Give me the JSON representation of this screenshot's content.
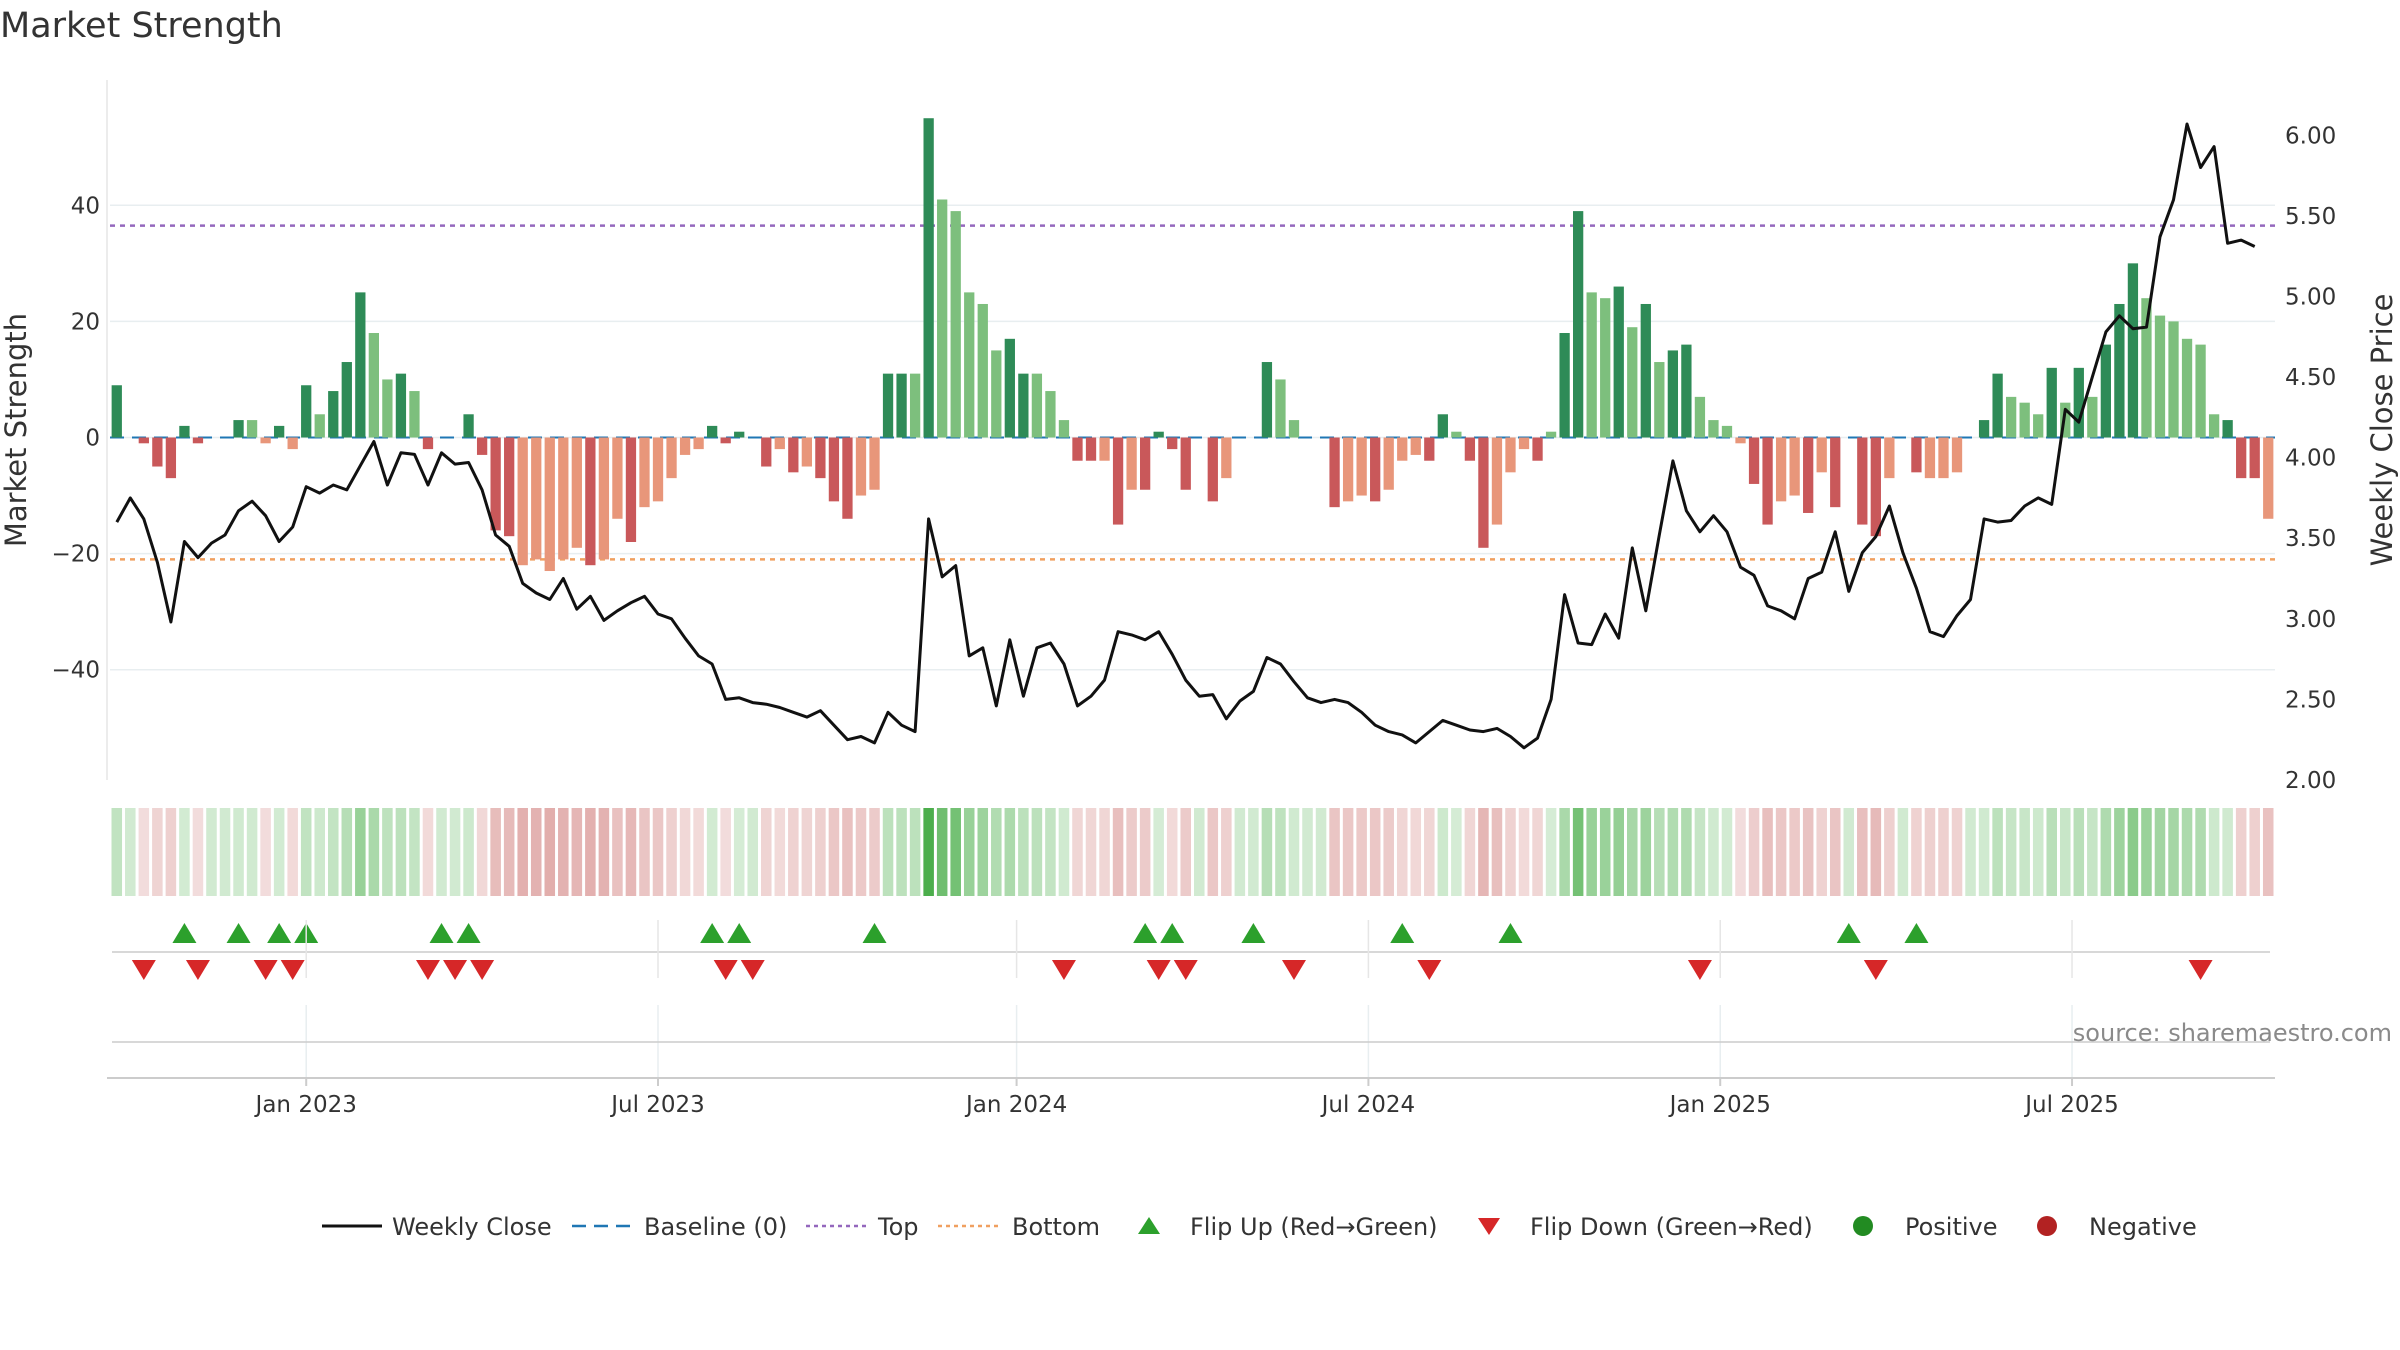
{
  "title": "Market Strength",
  "source": "source: sharemaestro.com",
  "chart_data": {
    "type": "bar+line",
    "title": "Market Strength",
    "left_axis": {
      "label": "Market Strength",
      "ylim": [
        -59,
        59
      ],
      "ticks": [
        -40,
        -20,
        0,
        20,
        40
      ]
    },
    "right_axis": {
      "label": "Weekly Close Price",
      "ylim": [
        2.0,
        6.25
      ],
      "ticks": [
        "2.00",
        "2.50",
        "3.00",
        "3.50",
        "4.00",
        "4.50",
        "5.00",
        "5.50",
        "6.00"
      ]
    },
    "x_ticks": [
      "Jan 2023",
      "Jul 2023",
      "Jan 2024",
      "Jul 2024",
      "Jan 2025",
      "Jul 2025"
    ],
    "x_tick_weeks": [
      14,
      40,
      66.5,
      92.5,
      118.5,
      144.5
    ],
    "top_line": 36.5,
    "bottom_line": -21,
    "colors": {
      "pos_strong": "#2e8b57",
      "pos_light": "#7dbf7d",
      "neg_strong": "#c9585a",
      "neg_light": "#e8967a",
      "line": "#111111",
      "baseline": "#1f77b4",
      "top": "#9467bd",
      "bottom": "#f0a060",
      "flip_up": "#2ca02c",
      "flip_down": "#d62728",
      "dot_pos": "#228b22",
      "dot_neg": "#b22222"
    },
    "strength": [
      9,
      0,
      -1,
      -5,
      -7,
      2,
      -1,
      0,
      0,
      3,
      3,
      -1,
      2,
      -2,
      9,
      4,
      8,
      13,
      25,
      18,
      10,
      11,
      8,
      -2,
      0,
      0,
      4,
      -3,
      -16,
      -17,
      -22,
      -21,
      -23,
      -21,
      -19,
      -22,
      -21,
      -14,
      -18,
      -12,
      -11,
      -7,
      -3,
      -2,
      2,
      -1,
      1,
      0,
      -5,
      -2,
      -6,
      -5,
      -7,
      -11,
      -14,
      -10,
      -9,
      11,
      11,
      11,
      55,
      41,
      39,
      25,
      23,
      15,
      17,
      11,
      11,
      8,
      3,
      -4,
      -4,
      -4,
      -15,
      -9,
      -9,
      1,
      -2,
      -9,
      0,
      -11,
      -7,
      0,
      0,
      13,
      10,
      3,
      0,
      0,
      -12,
      -11,
      -10,
      -11,
      -9,
      -4,
      -3,
      -4,
      4,
      1,
      -4,
      -19,
      -15,
      -6,
      -2,
      -4,
      1,
      18,
      39,
      25,
      24,
      26,
      19,
      23,
      13,
      15,
      16,
      7,
      3,
      2,
      -1,
      -8,
      -15,
      -11,
      -10,
      -13,
      -6,
      -12,
      0,
      -15,
      -17,
      -7,
      0,
      -6,
      -7,
      -7,
      -6,
      0,
      3,
      11,
      7,
      6,
      4,
      12,
      6,
      12,
      7,
      16,
      23,
      30,
      24,
      21,
      20,
      17,
      16,
      4,
      3,
      -7,
      -7,
      -14
    ],
    "strength_shade": [
      1,
      1,
      1,
      1,
      1,
      1,
      1,
      0,
      0,
      1,
      0,
      0,
      1,
      0,
      1,
      0,
      1,
      1,
      1,
      0,
      0,
      1,
      0,
      1,
      0,
      0,
      1,
      1,
      1,
      1,
      0,
      0,
      0,
      0,
      0,
      1,
      0,
      0,
      1,
      0,
      0,
      0,
      0,
      0,
      1,
      1,
      1,
      0,
      1,
      0,
      1,
      0,
      1,
      1,
      1,
      0,
      0,
      1,
      1,
      0,
      1,
      0,
      0,
      0,
      0,
      0,
      1,
      1,
      0,
      0,
      0,
      1,
      1,
      0,
      1,
      0,
      1,
      1,
      1,
      1,
      0,
      1,
      0,
      0,
      0,
      1,
      0,
      0,
      0,
      0,
      1,
      0,
      0,
      1,
      0,
      0,
      0,
      1,
      1,
      0,
      1,
      1,
      0,
      0,
      0,
      1,
      0,
      1,
      1,
      0,
      0,
      1,
      0,
      1,
      0,
      1,
      1,
      0,
      0,
      0,
      0,
      1,
      1,
      0,
      0,
      1,
      0,
      1,
      0,
      1,
      1,
      0,
      1,
      1,
      0,
      0,
      0,
      0,
      1,
      1,
      0,
      0,
      0,
      1,
      0,
      1,
      0,
      1,
      1,
      1,
      0,
      0,
      0,
      0,
      0,
      0,
      1,
      1,
      1
    ],
    "weekly_close": [
      3.6,
      3.75,
      3.62,
      3.35,
      2.98,
      3.48,
      3.38,
      3.47,
      3.52,
      3.67,
      3.73,
      3.64,
      3.48,
      3.57,
      3.82,
      3.78,
      3.83,
      3.8,
      3.95,
      4.1,
      3.83,
      4.03,
      4.02,
      3.83,
      4.03,
      3.96,
      3.97,
      3.8,
      3.52,
      3.45,
      3.22,
      3.16,
      3.12,
      3.25,
      3.06,
      3.14,
      2.99,
      3.05,
      3.1,
      3.14,
      3.03,
      3.0,
      2.88,
      2.77,
      2.72,
      2.5,
      2.51,
      2.48,
      2.47,
      2.45,
      2.42,
      2.39,
      2.43,
      2.34,
      2.25,
      2.27,
      2.23,
      2.42,
      2.34,
      2.3,
      3.62,
      3.26,
      3.33,
      2.77,
      2.82,
      2.46,
      2.87,
      2.52,
      2.82,
      2.85,
      2.72,
      2.46,
      2.52,
      2.62,
      2.92,
      2.9,
      2.87,
      2.92,
      2.78,
      2.62,
      2.52,
      2.53,
      2.38,
      2.49,
      2.55,
      2.76,
      2.72,
      2.61,
      2.51,
      2.48,
      2.5,
      2.48,
      2.42,
      2.34,
      2.3,
      2.28,
      2.23,
      2.3,
      2.37,
      2.34,
      2.31,
      2.3,
      2.32,
      2.27,
      2.2,
      2.26,
      2.5,
      3.15,
      2.85,
      2.84,
      3.03,
      2.88,
      3.44,
      3.05,
      3.52,
      3.98,
      3.67,
      3.54,
      3.64,
      3.54,
      3.32,
      3.27,
      3.08,
      3.05,
      3.0,
      3.25,
      3.29,
      3.54,
      3.17,
      3.41,
      3.51,
      3.7,
      3.41,
      3.19,
      2.92,
      2.89,
      3.02,
      3.12,
      3.62,
      3.6,
      3.61,
      3.7,
      3.75,
      3.71,
      4.3,
      4.22,
      4.5,
      4.78,
      4.88,
      4.8,
      4.81,
      5.37,
      5.6,
      6.07,
      5.8,
      5.93,
      5.33,
      5.35,
      5.31
    ],
    "flip_up_weeks": [
      5,
      9,
      12,
      14,
      24,
      26,
      44,
      46,
      56,
      76,
      78,
      84,
      95,
      103,
      128,
      133
    ],
    "flip_down_weeks": [
      2,
      6,
      11,
      13,
      23,
      25,
      27,
      45,
      47,
      70,
      77,
      79,
      87,
      97,
      117,
      130,
      154
    ]
  },
  "legend": [
    {
      "label": "Weekly Close",
      "icon": "line-solid"
    },
    {
      "label": "Baseline (0)",
      "icon": "line-dashed"
    },
    {
      "label": "Top",
      "icon": "line-dotted-purple"
    },
    {
      "label": "Bottom",
      "icon": "line-dotted-orange"
    },
    {
      "label": "Flip Up (Red→Green)",
      "icon": "triangle-up"
    },
    {
      "label": "Flip Down (Green→Red)",
      "icon": "triangle-down"
    },
    {
      "label": "Positive",
      "icon": "dot-green"
    },
    {
      "label": "Negative",
      "icon": "dot-red"
    }
  ]
}
